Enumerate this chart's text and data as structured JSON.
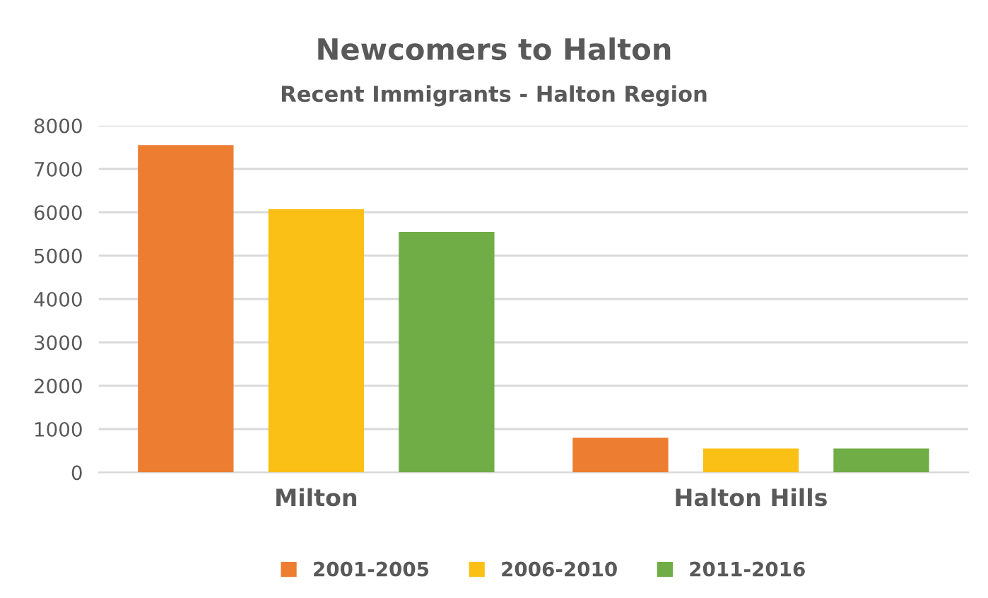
{
  "chart_data": {
    "type": "bar",
    "title": "Newcomers to Halton",
    "subtitle": "Recent Immigrants - Halton Region",
    "categories": [
      "Milton",
      "Halton Hills"
    ],
    "series": [
      {
        "name": "2001-2005",
        "color": "#ed7d31",
        "values": [
          7550,
          800
        ]
      },
      {
        "name": "2006-2010",
        "color": "#fbc015",
        "values": [
          6070,
          550
        ]
      },
      {
        "name": "2011-2016",
        "color": "#70ad47",
        "values": [
          5550,
          550
        ]
      }
    ],
    "ylim": [
      0,
      8000
    ],
    "yticks": [
      0,
      1000,
      2000,
      3000,
      4000,
      5000,
      6000,
      7000,
      8000
    ],
    "grid": "y",
    "legend": "bottom"
  }
}
